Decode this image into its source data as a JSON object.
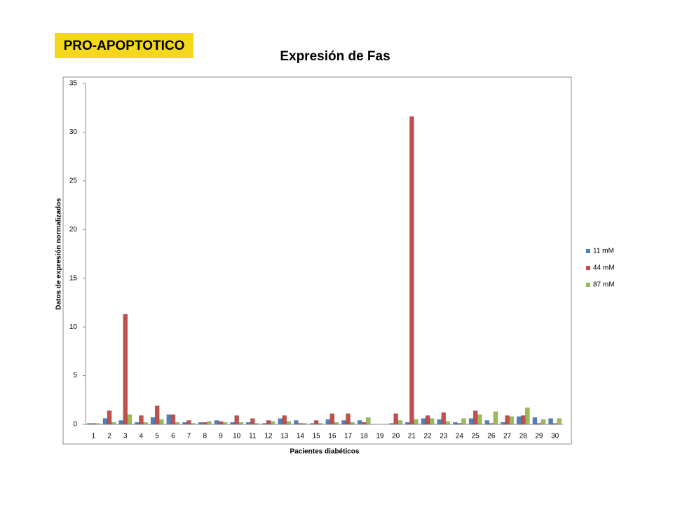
{
  "slide_label": "PRO-APOPTOTICO",
  "chart_data": {
    "type": "bar",
    "title": "Expresión de Fas",
    "x_label": "Pacientes diabéticos",
    "y_label": "Datos de expresión normalizados",
    "categories": [
      "1",
      "2",
      "3",
      "4",
      "5",
      "6",
      "7",
      "8",
      "9",
      "10",
      "11",
      "12",
      "13",
      "14",
      "15",
      "16",
      "17",
      "18",
      "19",
      "20",
      "21",
      "22",
      "23",
      "24",
      "25",
      "26",
      "27",
      "28",
      "29",
      "30"
    ],
    "series": [
      {
        "name": "11 mM",
        "color": "#4f81bd",
        "values": [
          0.1,
          0.6,
          0.4,
          0.2,
          0.7,
          1.0,
          0.2,
          0.2,
          0.4,
          0.2,
          0.2,
          0.1,
          0.6,
          0.4,
          0.1,
          0.5,
          0.4,
          0.4,
          null,
          0.1,
          0.2,
          0.6,
          0.5,
          0.2,
          0.6,
          0.4,
          0.2,
          0.8,
          0.7,
          0.6
        ]
      },
      {
        "name": "44 mM",
        "color": "#c0504d",
        "values": [
          0.1,
          1.4,
          11.3,
          0.9,
          1.9,
          1.0,
          0.4,
          0.2,
          0.3,
          0.9,
          0.6,
          0.4,
          0.9,
          0.1,
          0.4,
          1.1,
          1.1,
          0.2,
          null,
          1.1,
          31.6,
          0.9,
          1.2,
          0.1,
          1.4,
          0.1,
          0.9,
          0.9,
          0.1,
          0.1
        ]
      },
      {
        "name": "87 mM",
        "color": "#9bbb59",
        "values": [
          0.1,
          0.2,
          1.0,
          0.2,
          0.5,
          0.2,
          0.1,
          0.3,
          0.2,
          0.2,
          0.1,
          0.3,
          0.3,
          0.1,
          0.1,
          0.2,
          0.2,
          0.7,
          null,
          0.4,
          0.5,
          0.6,
          0.3,
          0.6,
          1.0,
          1.3,
          0.8,
          1.7,
          0.5,
          0.6
        ]
      }
    ],
    "ylim": [
      0,
      35
    ],
    "yticks": [
      0,
      5,
      10,
      15,
      20,
      25,
      30,
      35
    ],
    "legend": "right"
  }
}
